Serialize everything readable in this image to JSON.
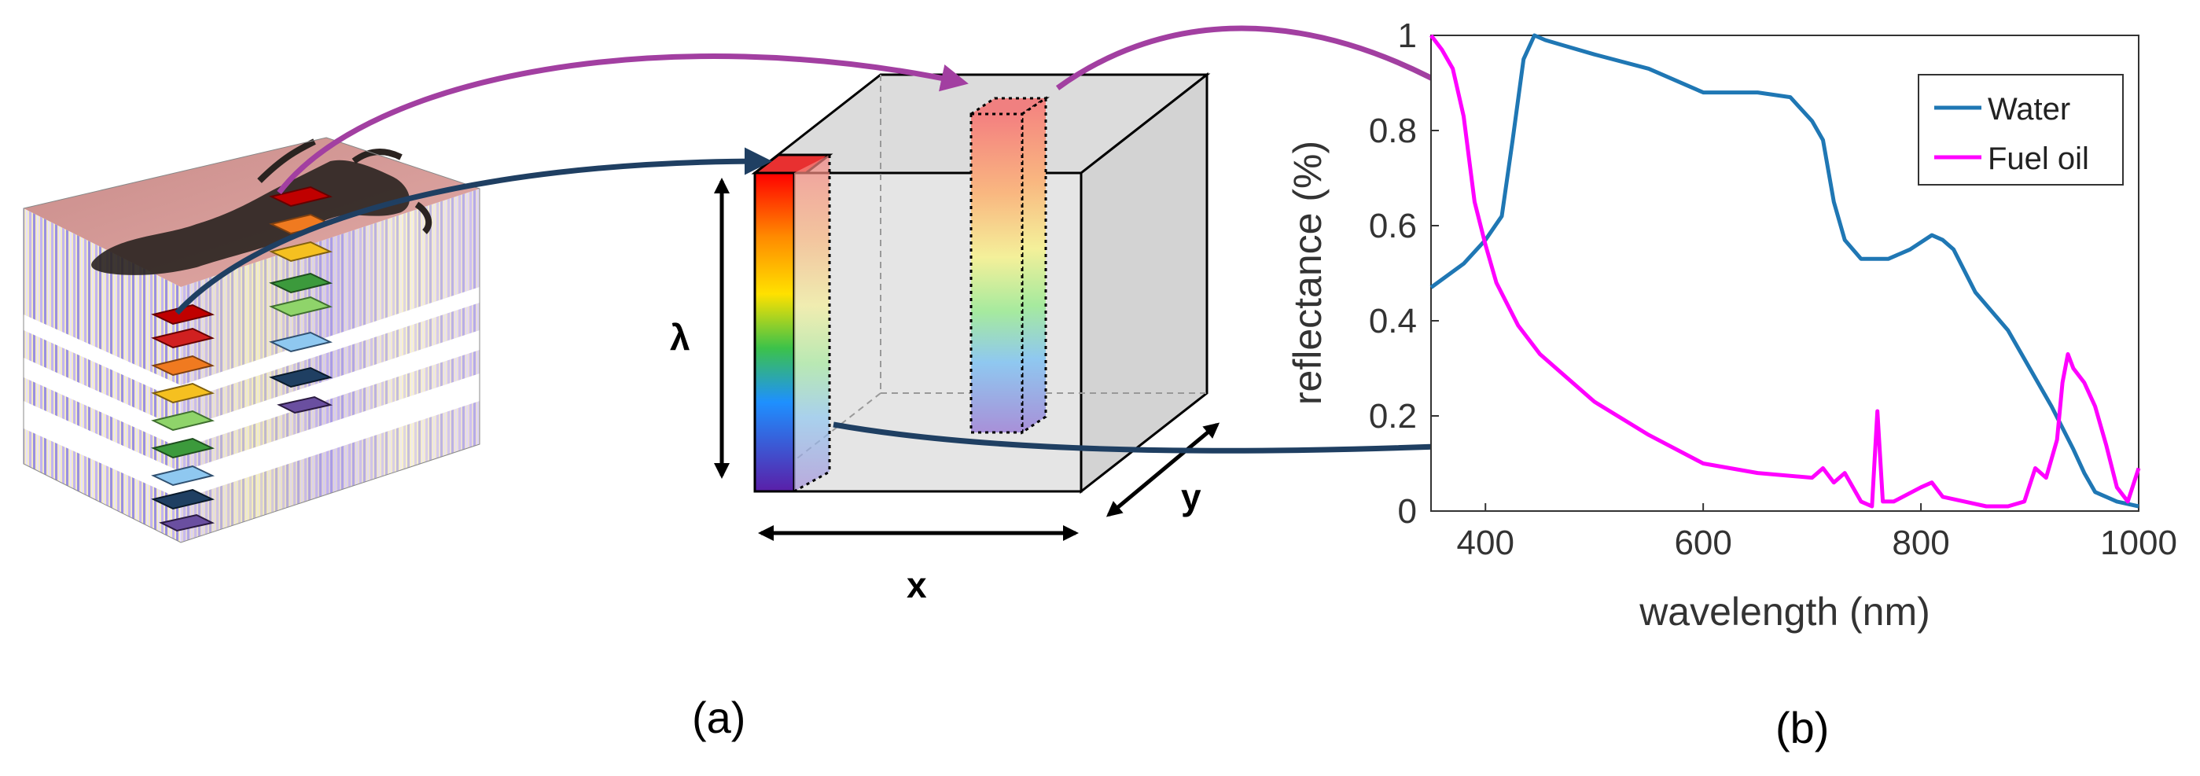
{
  "panels": {
    "a": "(a)",
    "b": "(b)"
  },
  "cube_axes": {
    "lambda": "λ",
    "x": "x",
    "y": "y"
  },
  "colors": {
    "water": "#1f77b4",
    "fuel_oil": "#ff00ff",
    "arrow_purple": "#a23fa1",
    "arrow_navy": "#1f3f62",
    "cube_face": "#d9d9d9"
  },
  "icons": {
    "spectrum_bar": "rainbow-gradient"
  },
  "chart_data": {
    "type": "line",
    "xlabel": "wavelength (nm)",
    "ylabel": "reflectance (%)",
    "xlim": [
      350,
      1000
    ],
    "ylim": [
      0,
      1
    ],
    "xticks": [
      400,
      600,
      800,
      1000
    ],
    "yticks": [
      0,
      0.2,
      0.4,
      0.6,
      0.8,
      1
    ],
    "ytick_labels": [
      "0",
      "0.2",
      "0.4",
      "0.6",
      "0.8",
      "1"
    ],
    "grid": false,
    "legend_position": "top-right",
    "series": [
      {
        "name": "Water",
        "x": [
          350,
          380,
          400,
          415,
          425,
          435,
          445,
          455,
          470,
          500,
          550,
          600,
          650,
          680,
          700,
          710,
          720,
          730,
          745,
          760,
          770,
          790,
          810,
          820,
          830,
          850,
          880,
          900,
          920,
          940,
          950,
          960,
          980,
          1000
        ],
        "y": [
          0.47,
          0.52,
          0.57,
          0.62,
          0.78,
          0.95,
          1.0,
          0.99,
          0.98,
          0.96,
          0.93,
          0.88,
          0.88,
          0.87,
          0.82,
          0.78,
          0.65,
          0.57,
          0.53,
          0.53,
          0.53,
          0.55,
          0.58,
          0.57,
          0.55,
          0.46,
          0.38,
          0.3,
          0.22,
          0.13,
          0.08,
          0.04,
          0.02,
          0.01
        ]
      },
      {
        "name": "Fuel oil",
        "x": [
          350,
          360,
          370,
          380,
          390,
          400,
          410,
          430,
          450,
          500,
          550,
          600,
          650,
          700,
          710,
          720,
          730,
          745,
          755,
          760,
          765,
          775,
          800,
          810,
          820,
          840,
          860,
          880,
          895,
          905,
          915,
          925,
          930,
          935,
          940,
          950,
          960,
          970,
          980,
          990,
          1000
        ],
        "y": [
          1.0,
          0.97,
          0.93,
          0.83,
          0.65,
          0.56,
          0.48,
          0.39,
          0.33,
          0.23,
          0.16,
          0.1,
          0.08,
          0.07,
          0.09,
          0.06,
          0.08,
          0.02,
          0.01,
          0.21,
          0.02,
          0.02,
          0.05,
          0.06,
          0.03,
          0.02,
          0.01,
          0.01,
          0.02,
          0.09,
          0.07,
          0.15,
          0.27,
          0.33,
          0.3,
          0.27,
          0.22,
          0.14,
          0.05,
          0.02,
          0.09
        ]
      }
    ]
  }
}
